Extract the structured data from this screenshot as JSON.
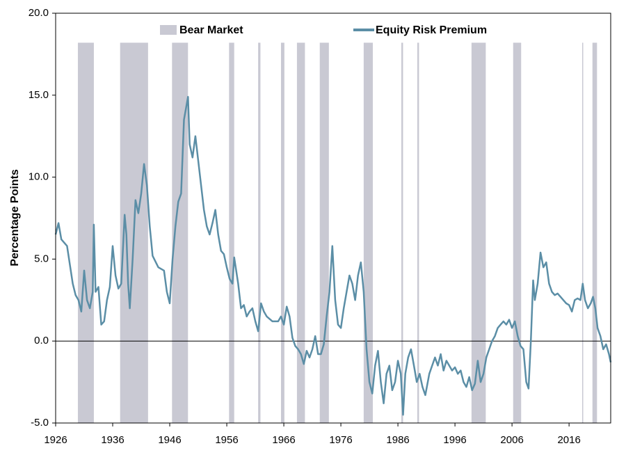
{
  "chart_data": {
    "type": "line",
    "ylabel": "Percentage Points",
    "xlim": [
      1926,
      2023.3
    ],
    "ylim": [
      -5,
      20
    ],
    "xticks": [
      1926,
      1936,
      1946,
      1956,
      1966,
      1976,
      1986,
      1996,
      2006,
      2016
    ],
    "yticks": [
      {
        "value": -5,
        "label": "-5.0"
      },
      {
        "value": 0,
        "label": "0.0"
      },
      {
        "value": 5,
        "label": "5.0"
      },
      {
        "value": 10,
        "label": "10.0"
      },
      {
        "value": 15,
        "label": "15.0"
      },
      {
        "value": 20,
        "label": "20.0"
      }
    ],
    "legend": "top",
    "bear_markets": {
      "name": "Bear Market",
      "color": "#c9c9d3",
      "ranges": [
        [
          1929.9,
          1932.7
        ],
        [
          1937.3,
          1942.2
        ],
        [
          1946.4,
          1949.2
        ],
        [
          1956.4,
          1957.3
        ],
        [
          1961.5,
          1961.9
        ],
        [
          1965.5,
          1966.1
        ],
        [
          1968.3,
          1969.7
        ],
        [
          1972.3,
          1973.9
        ],
        [
          1980.0,
          1981.6
        ],
        [
          1986.6,
          1986.9
        ],
        [
          1989.4,
          1989.7
        ],
        [
          1998.9,
          2001.4
        ],
        [
          2006.2,
          2007.6
        ],
        [
          2018.3,
          2018.4
        ],
        [
          2020.1,
          2020.9
        ]
      ]
    },
    "series": [
      {
        "name": "Equity Risk Premium",
        "color": "#5b8ea6",
        "x": [
          1926,
          1926.5,
          1927,
          1928,
          1929,
          1929.5,
          1930,
          1930.5,
          1931,
          1931.5,
          1932,
          1932.5,
          1932.7,
          1933,
          1933.5,
          1934,
          1934.5,
          1935,
          1935.5,
          1936,
          1936.5,
          1937,
          1937.5,
          1938.1,
          1938.4,
          1938.7,
          1939,
          1939.5,
          1940,
          1940.5,
          1941,
          1941.5,
          1942,
          1942.5,
          1943,
          1944,
          1945,
          1945.5,
          1946,
          1946.5,
          1947,
          1947.5,
          1948,
          1948.5,
          1949.2,
          1949.5,
          1950,
          1950.5,
          1951,
          1951.5,
          1952,
          1952.5,
          1953,
          1953.5,
          1954,
          1954.5,
          1955,
          1955.5,
          1956,
          1956.5,
          1957,
          1957.3,
          1958,
          1958.5,
          1959,
          1959.5,
          1960,
          1960.5,
          1961,
          1961.5,
          1962,
          1962.5,
          1963,
          1964,
          1965,
          1965.5,
          1966,
          1966.5,
          1967,
          1967.5,
          1968,
          1968.5,
          1969,
          1969.5,
          1970,
          1970.5,
          1971,
          1971.5,
          1972,
          1972.5,
          1973,
          1973.5,
          1974,
          1974.5,
          1975,
          1975.5,
          1976,
          1976.5,
          1977,
          1977.5,
          1978,
          1978.5,
          1979,
          1979.5,
          1980,
          1980.5,
          1981,
          1981.5,
          1982,
          1982.5,
          1983,
          1983.5,
          1984,
          1984.5,
          1985,
          1985.5,
          1986,
          1986.5,
          1986.9,
          1987.3,
          1987.8,
          1988.3,
          1988.8,
          1989.3,
          1989.8,
          1990.3,
          1990.8,
          1991.5,
          1992,
          1992.5,
          1993,
          1993.5,
          1994,
          1994.5,
          1995,
          1995.5,
          1996,
          1996.5,
          1997,
          1997.5,
          1998,
          1998.5,
          1999,
          1999.5,
          2000,
          2000.5,
          2001,
          2001.5,
          2002,
          2002.5,
          2003,
          2003.5,
          2004,
          2004.5,
          2005,
          2005.5,
          2006,
          2006.5,
          2007,
          2007.5,
          2008,
          2008.5,
          2008.9,
          2009.3,
          2009.7,
          2010,
          2010.5,
          2011,
          2011.5,
          2012,
          2012.5,
          2013,
          2013.5,
          2014,
          2014.5,
          2015,
          2015.5,
          2016,
          2016.5,
          2017,
          2017.5,
          2018,
          2018.4,
          2018.8,
          2019.3,
          2019.8,
          2020.2,
          2020.6,
          2021,
          2021.5,
          2022,
          2022.5,
          2023,
          2023.3
        ],
        "values": [
          6.5,
          7.2,
          6.2,
          5.8,
          3.5,
          2.8,
          2.5,
          1.8,
          4.3,
          2.5,
          2.0,
          3.0,
          7.1,
          3.0,
          3.3,
          1.0,
          1.2,
          2.5,
          3.3,
          5.8,
          4.0,
          3.2,
          3.5,
          7.7,
          6.5,
          3.5,
          2.0,
          5.0,
          8.6,
          7.8,
          9.0,
          10.8,
          9.5,
          7.0,
          5.2,
          4.5,
          4.3,
          3.0,
          2.3,
          5.0,
          7.0,
          8.5,
          9.0,
          13.5,
          14.9,
          12.0,
          11.2,
          12.5,
          11.0,
          9.5,
          8.0,
          7.0,
          6.5,
          7.2,
          8.0,
          6.5,
          5.5,
          5.3,
          4.5,
          3.8,
          3.5,
          5.1,
          3.5,
          2.0,
          2.2,
          1.5,
          1.8,
          2.0,
          1.2,
          0.6,
          2.3,
          1.8,
          1.5,
          1.2,
          1.2,
          1.5,
          1.0,
          2.1,
          1.5,
          0.2,
          -0.3,
          -0.5,
          -0.8,
          -1.4,
          -0.6,
          -1.0,
          -0.5,
          0.3,
          -0.8,
          -0.8,
          -0.2,
          1.5,
          3.0,
          5.8,
          2.5,
          1.0,
          0.8,
          2.0,
          3.0,
          4.0,
          3.5,
          2.5,
          4.0,
          4.8,
          3.0,
          -0.5,
          -2.5,
          -3.2,
          -1.5,
          -0.6,
          -2.5,
          -3.8,
          -2.0,
          -1.5,
          -3.0,
          -2.5,
          -1.2,
          -2.0,
          -4.5,
          -2.0,
          -1.0,
          -0.5,
          -1.5,
          -2.5,
          -2.0,
          -2.8,
          -3.3,
          -2.0,
          -1.5,
          -1.0,
          -1.5,
          -0.8,
          -1.8,
          -1.2,
          -1.5,
          -1.8,
          -1.6,
          -2.0,
          -1.8,
          -2.5,
          -2.8,
          -2.2,
          -3.0,
          -2.6,
          -1.2,
          -2.5,
          -2.0,
          -1.0,
          -0.5,
          0.0,
          0.3,
          0.8,
          1.0,
          1.2,
          1.0,
          1.3,
          0.8,
          1.2,
          0.3,
          -0.3,
          -0.5,
          -2.5,
          -2.9,
          0.0,
          3.7,
          2.5,
          3.5,
          5.4,
          4.5,
          4.8,
          3.5,
          3.0,
          2.8,
          2.9,
          2.7,
          2.5,
          2.3,
          2.2,
          1.8,
          2.5,
          2.6,
          2.5,
          3.5,
          2.5,
          2.0,
          2.3,
          2.7,
          2.0,
          0.8,
          0.3,
          -0.5,
          -0.2,
          -0.8,
          -1.3
        ]
      }
    ]
  }
}
